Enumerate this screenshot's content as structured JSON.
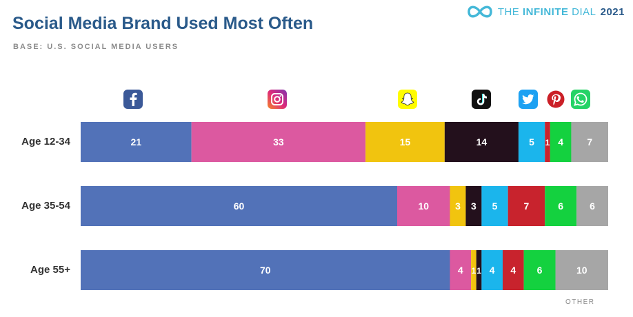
{
  "header": {
    "title": "Social Media Brand Used Most Often",
    "subtitle": "BASE: U.S. SOCIAL MEDIA USERS",
    "brand_prefix": "THE",
    "brand_bold": "INFINITE",
    "brand_light": "DIAL",
    "brand_year": "2021"
  },
  "icons": [
    {
      "name": "facebook-icon",
      "color": "#3b5998"
    },
    {
      "name": "instagram-icon",
      "color": "#d6307a"
    },
    {
      "name": "snapchat-icon",
      "color": "#fffc00"
    },
    {
      "name": "tiktok-icon",
      "color": "#111111"
    },
    {
      "name": "twitter-icon",
      "color": "#1da1f2"
    },
    {
      "name": "pinterest-icon",
      "color": "#cb1f27"
    },
    {
      "name": "whatsapp-icon",
      "color": "#25d366"
    }
  ],
  "chart_data": {
    "type": "bar",
    "orientation": "horizontal-stacked-100",
    "categories": [
      "Age 12-34",
      "Age 35-54",
      "Age 55+"
    ],
    "series": [
      {
        "color": "#5272b8",
        "values": [
          21,
          60,
          70
        ]
      },
      {
        "color": "#dc59a0",
        "values": [
          33,
          10,
          4
        ]
      },
      {
        "color": "#f1c40f",
        "values": [
          15,
          3,
          1
        ]
      },
      {
        "color": "#23101c",
        "values": [
          14,
          3,
          1
        ]
      },
      {
        "color": "#1bb5ec",
        "values": [
          5,
          5,
          4
        ]
      },
      {
        "color": "#c8232d",
        "values": [
          1,
          7,
          4
        ]
      },
      {
        "color": "#14d13f",
        "values": [
          4,
          6,
          6
        ]
      },
      {
        "name": "OTHER",
        "color": "#a6a6a6",
        "values": [
          7,
          6,
          10
        ]
      }
    ],
    "xlim": [
      0,
      100
    ],
    "other_label": "OTHER"
  }
}
